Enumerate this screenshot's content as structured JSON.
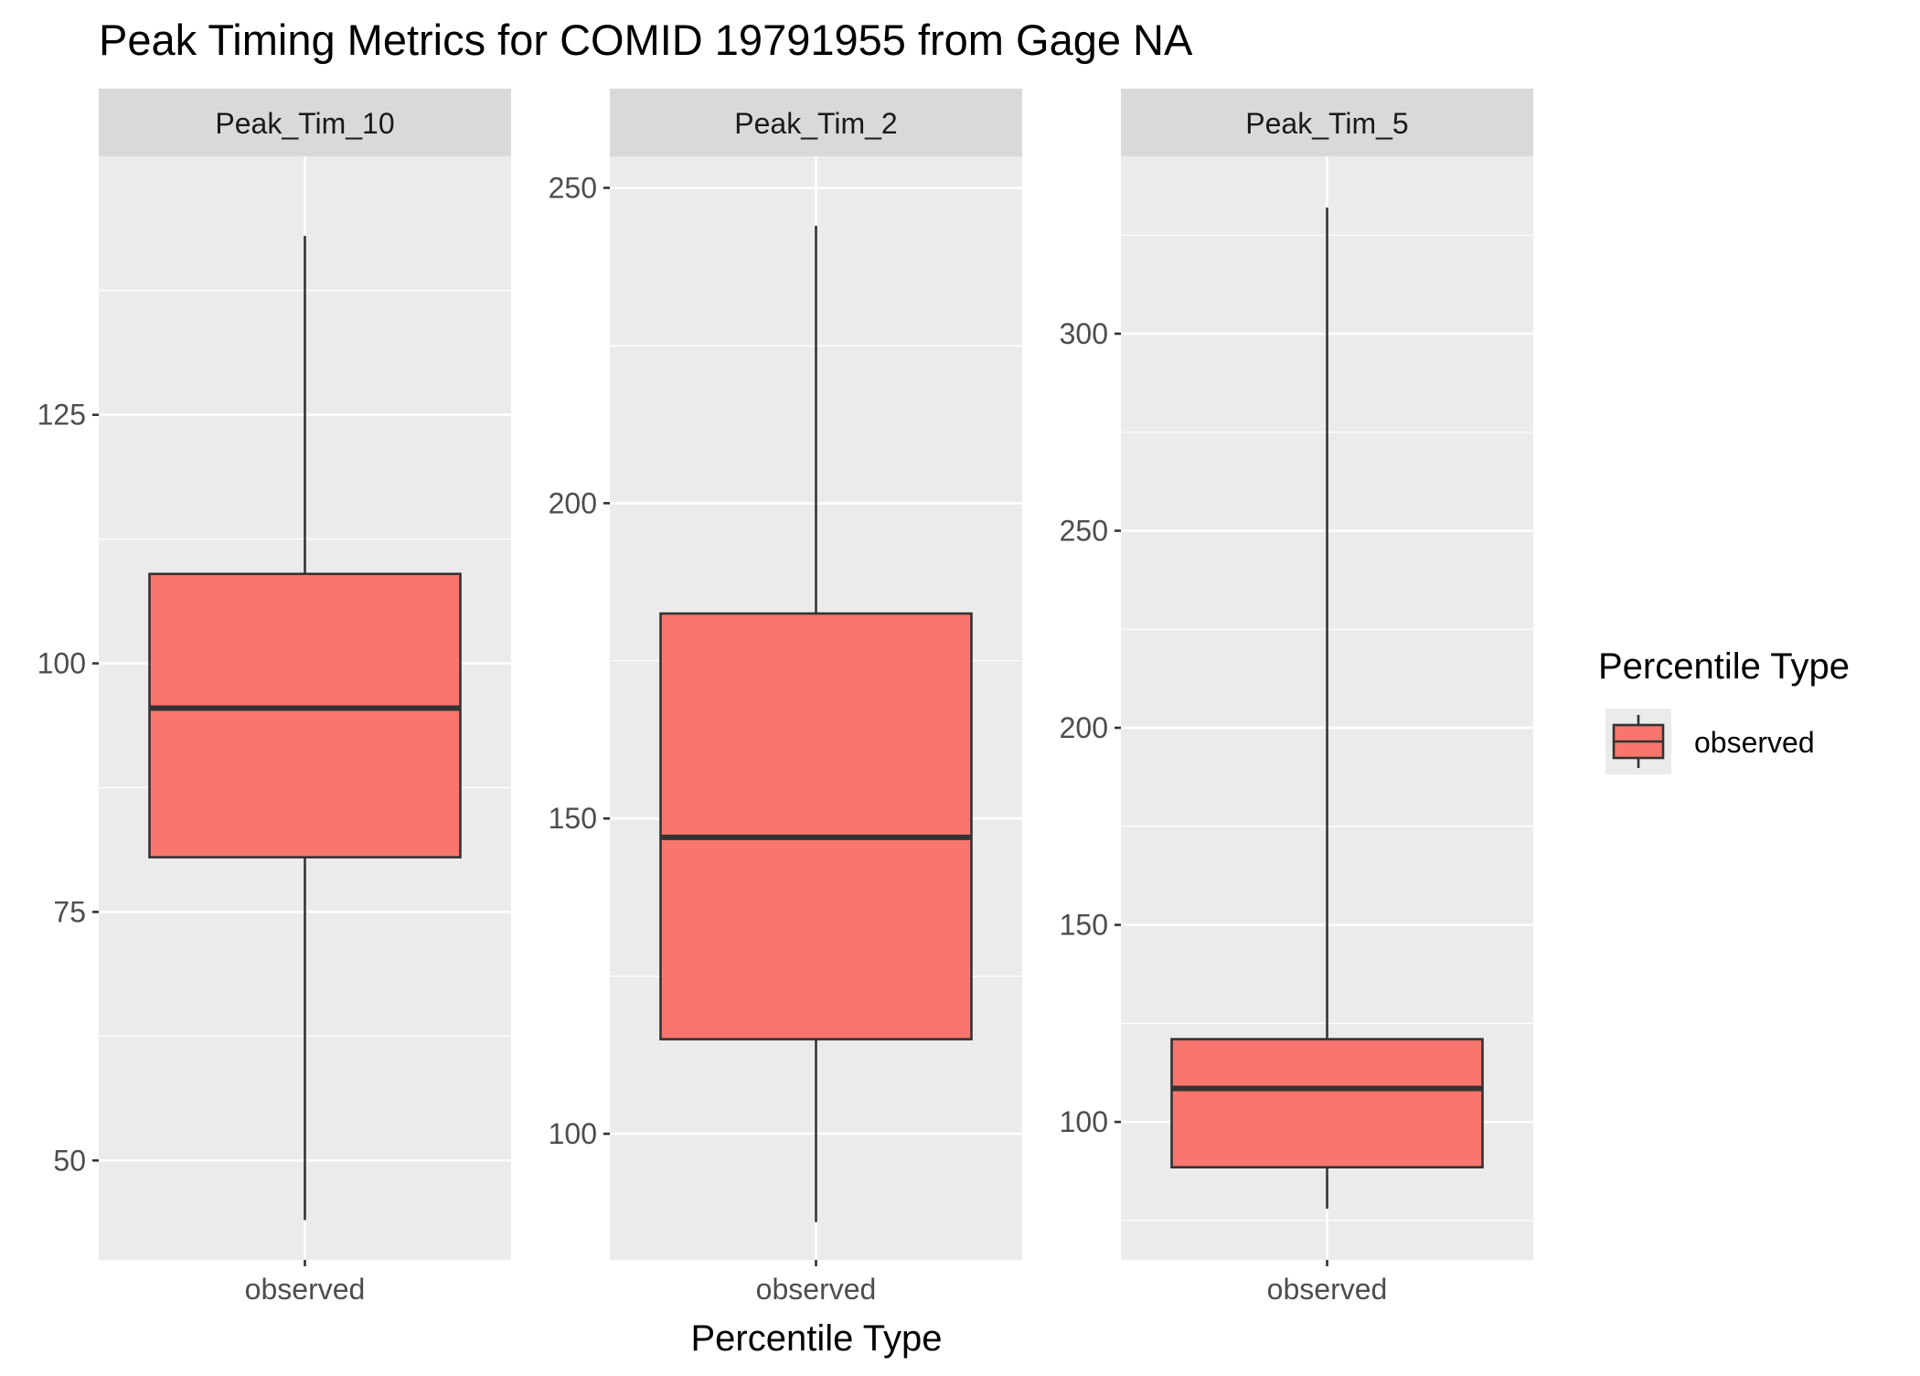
{
  "title": "Peak Timing Metrics for COMID 19791955 from Gage NA",
  "xlabel": "Percentile Type",
  "legend": {
    "title": "Percentile Type",
    "placement": "right",
    "entries": [
      {
        "label": "observed",
        "color": "#F8766D"
      }
    ]
  },
  "colors": {
    "box_fill": "#F8766D",
    "box_stroke": "#333333",
    "panel_bg": "#EBEBEB",
    "strip_bg": "#D9D9D9",
    "grid": "#FFFFFF",
    "text": "#000000",
    "tick_text": "#4D4D4D"
  },
  "chart_data": [
    {
      "type": "boxplot",
      "panel": "Peak_Tim_10",
      "categories": [
        "observed"
      ],
      "ylim": [
        40,
        151
      ],
      "yticks": [
        50,
        75,
        100,
        125
      ],
      "boxes": [
        {
          "category": "observed",
          "min": 44,
          "q1": 80.5,
          "median": 95.5,
          "q3": 109,
          "max": 143
        }
      ]
    },
    {
      "type": "boxplot",
      "panel": "Peak_Tim_2",
      "categories": [
        "observed"
      ],
      "ylim": [
        80,
        255
      ],
      "yticks": [
        100,
        150,
        200,
        250
      ],
      "boxes": [
        {
          "category": "observed",
          "min": 86,
          "q1": 115,
          "median": 147,
          "q3": 182.5,
          "max": 244
        }
      ]
    },
    {
      "type": "boxplot",
      "panel": "Peak_Tim_5",
      "categories": [
        "observed"
      ],
      "ylim": [
        65,
        345
      ],
      "yticks": [
        100,
        150,
        200,
        250,
        300
      ],
      "boxes": [
        {
          "category": "observed",
          "min": 78,
          "q1": 88.5,
          "median": 108.5,
          "q3": 121,
          "max": 332
        }
      ]
    }
  ]
}
